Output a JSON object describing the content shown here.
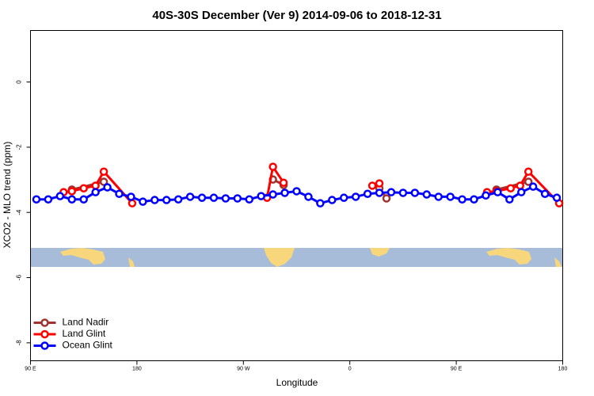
{
  "chart_data": {
    "type": "line",
    "title": "40S-30S December (Ver 9)   2014-09-06 to 2018-12-31",
    "x_label": "Longitude",
    "y_label": "XCO2 - MLO trend (ppm)",
    "xlim": [
      90,
      540
    ],
    "xticks": [
      {
        "value": 90,
        "label": "90 E"
      },
      180,
      {
        "value": 270,
        "label": "90 W"
      },
      {
        "value": 360,
        "label": "0"
      },
      {
        "value": 450,
        "label": "90 E"
      },
      {
        "value": 540,
        "label": "180"
      }
    ],
    "ylim": [
      -8.55,
      1.58
    ],
    "yticks": [
      0,
      -2,
      -4,
      -6,
      -8
    ],
    "legend_position": "bottom-left",
    "series": [
      {
        "name": "Land Nadir",
        "color": "#a0332f",
        "x": [
          125,
          152,
          null,
          295,
          304,
          null,
          385,
          391,
          null,
          484,
          511
        ],
        "values": [
          -3.3,
          -3.06,
          null,
          -2.99,
          -3.16,
          null,
          -3.26,
          -3.57,
          null,
          -3.3,
          -3.06
        ]
      },
      {
        "name": "Land Glint",
        "color": "#ff0000",
        "x": [
          118,
          125,
          135,
          145,
          152,
          176,
          null,
          290,
          295,
          304,
          null,
          379,
          385,
          null,
          476,
          484,
          496,
          504,
          511,
          537
        ],
        "values": [
          -3.38,
          -3.35,
          -3.26,
          -3.18,
          -2.75,
          -3.72,
          null,
          -3.55,
          -2.6,
          -3.09,
          null,
          -3.18,
          -3.11,
          null,
          -3.38,
          -3.35,
          -3.26,
          -3.18,
          -2.75,
          -3.72
        ]
      },
      {
        "name": "Ocean Glint",
        "color": "#0000ff",
        "x": [
          95,
          105,
          115,
          125,
          135,
          145,
          155,
          165,
          175,
          185,
          195,
          205,
          215,
          225,
          235,
          245,
          255,
          265,
          275,
          285,
          295,
          305,
          315,
          325,
          335,
          345,
          355,
          365,
          375,
          385,
          395,
          405,
          415,
          425,
          435,
          445,
          455,
          465,
          475,
          485,
          495,
          505,
          515,
          525,
          535
        ],
        "values": [
          -3.6,
          -3.6,
          -3.5,
          -3.6,
          -3.6,
          -3.38,
          -3.23,
          -3.43,
          -3.52,
          -3.67,
          -3.62,
          -3.62,
          -3.6,
          -3.52,
          -3.55,
          -3.55,
          -3.57,
          -3.57,
          -3.6,
          -3.5,
          -3.45,
          -3.4,
          -3.35,
          -3.52,
          -3.72,
          -3.62,
          -3.55,
          -3.52,
          -3.43,
          -3.4,
          -3.38,
          -3.4,
          -3.4,
          -3.45,
          -3.52,
          -3.52,
          -3.6,
          -3.6,
          -3.48,
          -3.38,
          -3.6,
          -3.38,
          -3.21,
          -3.43,
          -3.55
        ]
      }
    ]
  }
}
